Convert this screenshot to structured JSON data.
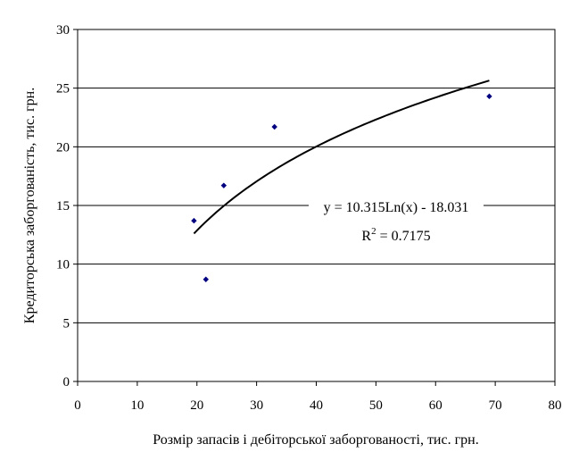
{
  "chart_data": {
    "type": "scatter",
    "xlabel": "Розмір запасів і дебіторської заборгованості, тис. грн.",
    "ylabel": "Кредиторська заборгованість, тис. грн.",
    "xlim": [
      0,
      80
    ],
    "ylim": [
      0,
      30
    ],
    "x_ticks": [
      "0",
      "10",
      "20",
      "30",
      "40",
      "50",
      "60",
      "70",
      "80"
    ],
    "y_ticks": [
      "0",
      "5",
      "10",
      "15",
      "20",
      "25",
      "30"
    ],
    "grid": "horizontal",
    "points": [
      {
        "x": 19.5,
        "y": 13.7
      },
      {
        "x": 21.5,
        "y": 8.7
      },
      {
        "x": 24.5,
        "y": 16.7
      },
      {
        "x": 33.0,
        "y": 21.7
      },
      {
        "x": 69.0,
        "y": 24.3
      }
    ],
    "trendline": {
      "type": "logarithmic",
      "a": 10.315,
      "b": -18.031,
      "x_range": [
        19.5,
        69.0
      ],
      "equation_label": "y = 10.315Ln(x) - 18.031",
      "r2_prefix": "R",
      "r2_sup": "2",
      "r2_value": " = 0.7175"
    },
    "colors": {
      "point": "#000080",
      "trendline": "#000000",
      "grid": "#000000",
      "axis": "#000000"
    }
  }
}
